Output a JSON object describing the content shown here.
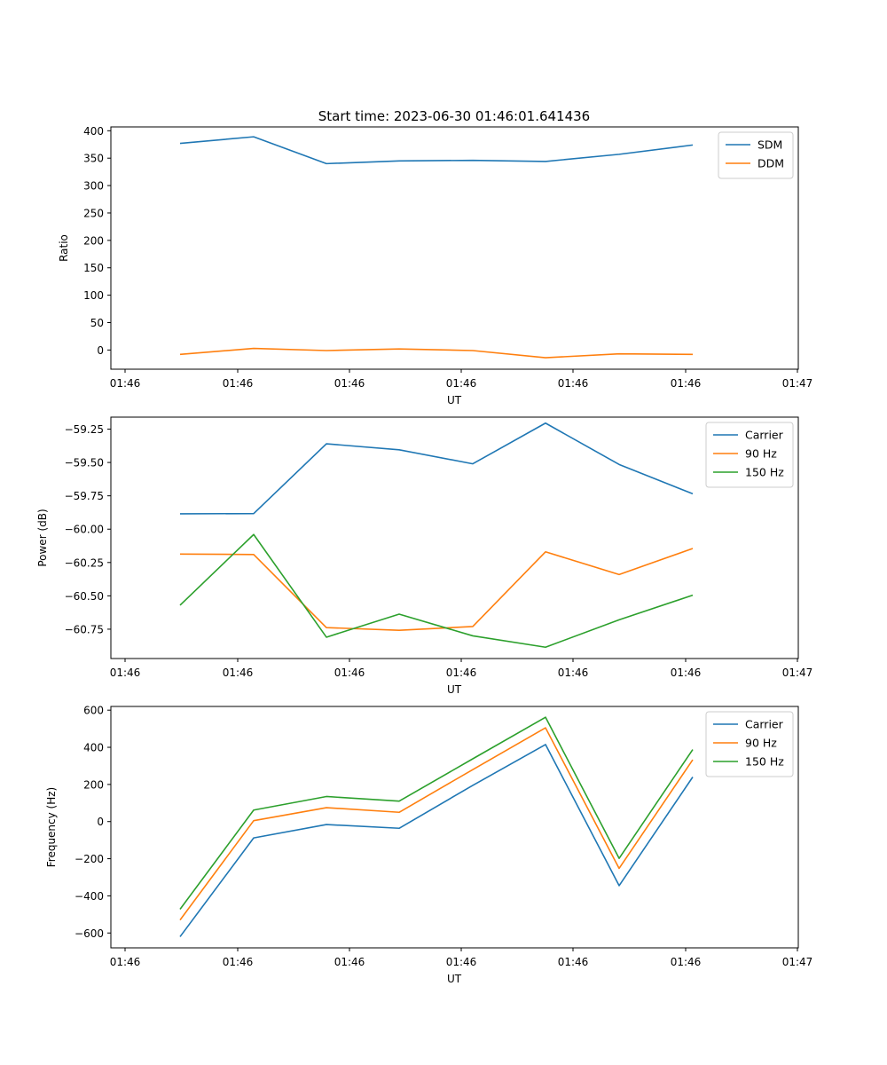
{
  "title": "Start time: 2023-06-30 01:46:01.641436",
  "colors": {
    "blue": "#1f77b4",
    "orange": "#ff7f0e",
    "green": "#2ca02c"
  },
  "chart_data": [
    {
      "type": "line",
      "title": "Start time: 2023-06-30 01:46:01.641436",
      "xlabel": "UT",
      "ylabel": "Ratio",
      "x_ticks": [
        "01:46",
        "01:46",
        "01:46",
        "01:46",
        "01:46",
        "01:46",
        "01:46"
      ],
      "x_ticks_end": "01:47",
      "y_ticks": [
        "0",
        "50",
        "100",
        "150",
        "200",
        "250",
        "300",
        "350",
        "400"
      ],
      "ylim": [
        -35,
        407
      ],
      "legend": "top-right",
      "grid": false,
      "series": [
        {
          "name": "SDM",
          "color": "blue",
          "values": [
            377,
            389,
            340,
            345,
            346,
            344,
            357,
            374
          ]
        },
        {
          "name": "DDM",
          "color": "orange",
          "values": [
            -8,
            3,
            -1,
            2,
            -1,
            -14,
            -7,
            -8
          ]
        }
      ]
    },
    {
      "type": "line",
      "xlabel": "UT",
      "ylabel": "Power (dB)",
      "x_ticks": [
        "01:46",
        "01:46",
        "01:46",
        "01:46",
        "01:46",
        "01:46",
        "01:46"
      ],
      "x_ticks_end": "01:47",
      "y_ticks": [
        "−59.25",
        "−59.50",
        "−59.75",
        "−60.00",
        "−60.25",
        "−60.50",
        "−60.75"
      ],
      "ylim": [
        -60.97,
        -59.16
      ],
      "legend": "top-right",
      "grid": false,
      "series": [
        {
          "name": "Carrier",
          "color": "blue",
          "values": [
            -59.885,
            -59.883,
            -59.36,
            -59.405,
            -59.51,
            -59.205,
            -59.515,
            -59.735
          ]
        },
        {
          "name": "90 Hz",
          "color": "orange",
          "values": [
            -60.187,
            -60.19,
            -60.738,
            -60.758,
            -60.73,
            -60.17,
            -60.34,
            -60.145
          ]
        },
        {
          "name": "150 Hz",
          "color": "green",
          "values": [
            -60.57,
            -60.04,
            -60.81,
            -60.637,
            -60.8,
            -60.885,
            -60.68,
            -60.495
          ]
        }
      ]
    },
    {
      "type": "line",
      "xlabel": "UT",
      "ylabel": "Frequency (Hz)",
      "x_ticks": [
        "01:46",
        "01:46",
        "01:46",
        "01:46",
        "01:46",
        "01:46",
        "01:46"
      ],
      "x_ticks_end": "01:47",
      "y_ticks": [
        "−600",
        "−400",
        "−200",
        "0",
        "200",
        "400",
        "600"
      ],
      "ylim": [
        -680,
        620
      ],
      "legend": "top-right",
      "grid": false,
      "series": [
        {
          "name": "Carrier",
          "color": "blue",
          "values": [
            -620,
            -88,
            -16,
            -36,
            195,
            415,
            -345,
            240
          ]
        },
        {
          "name": "90 Hz",
          "color": "orange",
          "values": [
            -530,
            5,
            75,
            50,
            280,
            505,
            -252,
            333
          ]
        },
        {
          "name": "150 Hz",
          "color": "green",
          "values": [
            -472,
            62,
            135,
            110,
            338,
            562,
            -198,
            388
          ]
        }
      ]
    }
  ]
}
